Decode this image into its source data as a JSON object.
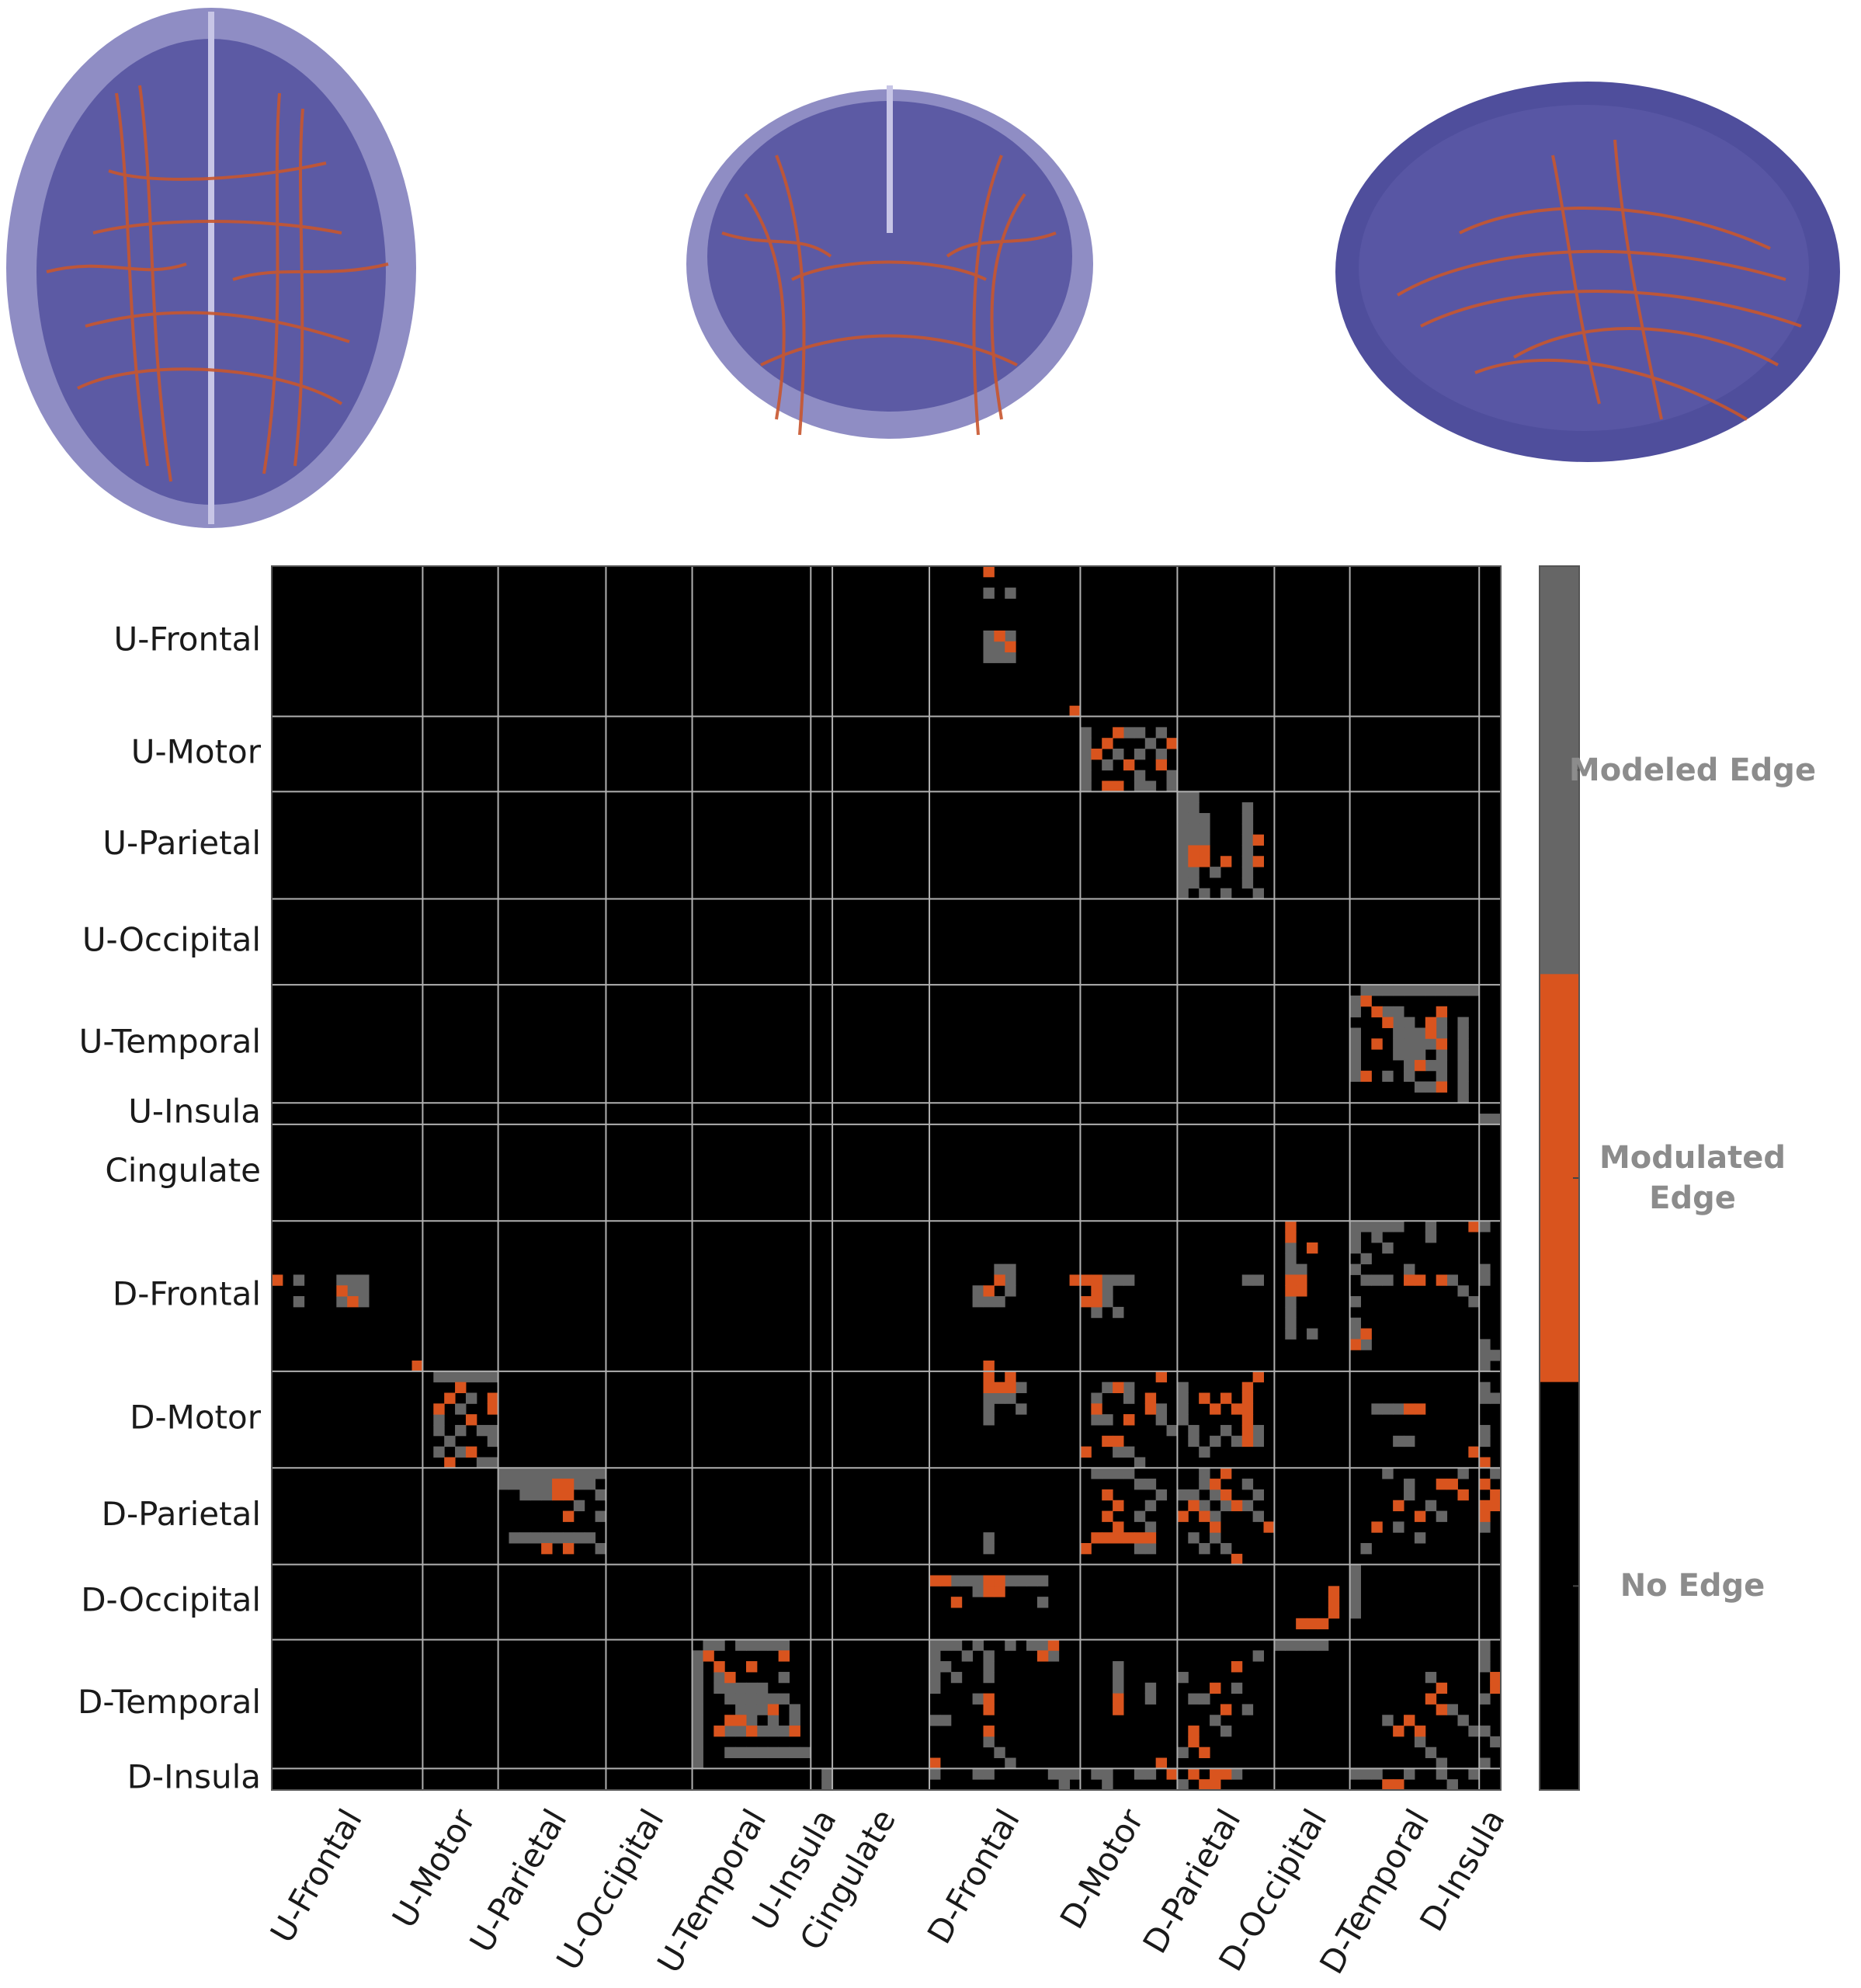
{
  "chart_data": {
    "type": "heatmap",
    "groups": [
      {
        "label": "U-Frontal",
        "size": 14
      },
      {
        "label": "U-Motor",
        "size": 7
      },
      {
        "label": "U-Parietal",
        "size": 10
      },
      {
        "label": "U-Occipital",
        "size": 8
      },
      {
        "label": "U-Temporal",
        "size": 11
      },
      {
        "label": "U-Insula",
        "size": 2
      },
      {
        "label": "Cingulate",
        "size": 9
      },
      {
        "label": "D-Frontal",
        "size": 14
      },
      {
        "label": "D-Motor",
        "size": 9
      },
      {
        "label": "D-Parietal",
        "size": 9
      },
      {
        "label": "D-Occipital",
        "size": 7
      },
      {
        "label": "D-Temporal",
        "size": 12
      },
      {
        "label": "D-Insula",
        "size": 2
      }
    ],
    "symmetric": true,
    "background": {
      "name": "No Edge",
      "color": "#000000"
    },
    "series": [
      {
        "name": "Modeled Edge",
        "color": "#666666",
        "cells": [
          [
            2,
            66
          ],
          [
            2,
            68
          ],
          [
            6,
            66
          ],
          [
            6,
            68
          ],
          [
            7,
            66
          ],
          [
            7,
            67
          ],
          [
            8,
            66
          ],
          [
            8,
            67
          ],
          [
            8,
            68
          ],
          [
            15,
            75
          ],
          [
            16,
            75
          ],
          [
            17,
            75
          ],
          [
            18,
            75
          ],
          [
            19,
            75
          ],
          [
            20,
            75
          ],
          [
            15,
            79
          ],
          [
            15,
            80
          ],
          [
            15,
            82
          ],
          [
            16,
            81
          ],
          [
            17,
            78
          ],
          [
            17,
            80
          ],
          [
            17,
            82
          ],
          [
            18,
            77
          ],
          [
            19,
            80
          ],
          [
            20,
            80
          ],
          [
            20,
            81
          ],
          [
            20,
            83
          ],
          [
            19,
            83
          ],
          [
            21,
            84
          ],
          [
            22,
            84
          ],
          [
            23,
            84
          ],
          [
            24,
            84
          ],
          [
            25,
            84
          ],
          [
            26,
            84
          ],
          [
            27,
            84
          ],
          [
            28,
            84
          ],
          [
            29,
            84
          ],
          [
            30,
            84
          ],
          [
            21,
            85
          ],
          [
            22,
            85
          ],
          [
            23,
            85
          ],
          [
            24,
            85
          ],
          [
            25,
            85
          ],
          [
            28,
            85
          ],
          [
            29,
            85
          ],
          [
            22,
            90
          ],
          [
            23,
            90
          ],
          [
            24,
            90
          ],
          [
            25,
            90
          ],
          [
            26,
            90
          ],
          [
            27,
            90
          ],
          [
            28,
            90
          ],
          [
            29,
            90
          ],
          [
            28,
            87
          ],
          [
            30,
            86
          ],
          [
            30,
            88
          ],
          [
            30,
            91
          ],
          [
            23,
            86
          ],
          [
            24,
            86
          ],
          [
            25,
            86
          ],
          [
            39,
            101
          ],
          [
            39,
            102
          ],
          [
            39,
            103
          ],
          [
            39,
            104
          ],
          [
            39,
            105
          ],
          [
            39,
            106
          ],
          [
            39,
            107
          ],
          [
            39,
            108
          ],
          [
            39,
            109
          ],
          [
            39,
            110
          ],
          [
            39,
            111
          ],
          [
            40,
            100
          ],
          [
            41,
            100
          ],
          [
            43,
            100
          ],
          [
            44,
            100
          ],
          [
            45,
            100
          ],
          [
            46,
            100
          ],
          [
            47,
            100
          ],
          [
            41,
            103
          ],
          [
            41,
            104
          ],
          [
            42,
            104
          ],
          [
            42,
            105
          ],
          [
            43,
            104
          ],
          [
            43,
            105
          ],
          [
            43,
            106
          ],
          [
            44,
            104
          ],
          [
            44,
            105
          ],
          [
            44,
            106
          ],
          [
            44,
            107
          ],
          [
            45,
            104
          ],
          [
            45,
            105
          ],
          [
            45,
            106
          ],
          [
            46,
            105
          ],
          [
            46,
            107
          ],
          [
            47,
            105
          ],
          [
            47,
            108
          ],
          [
            48,
            106
          ],
          [
            48,
            107
          ],
          [
            48,
            110
          ],
          [
            49,
            110
          ],
          [
            42,
            110
          ],
          [
            43,
            110
          ],
          [
            44,
            110
          ],
          [
            45,
            110
          ],
          [
            46,
            110
          ],
          [
            47,
            110
          ],
          [
            42,
            108
          ],
          [
            43,
            108
          ],
          [
            45,
            108
          ],
          [
            46,
            108
          ],
          [
            47,
            103
          ],
          [
            51,
            112
          ],
          [
            51,
            113
          ],
          [
            63,
            94
          ],
          [
            64,
            94
          ],
          [
            65,
            94
          ],
          [
            68,
            94
          ],
          [
            69,
            94
          ],
          [
            70,
            94
          ],
          [
            71,
            94
          ],
          [
            71,
            96
          ],
          [
            65,
            95
          ],
          [
            61,
            102
          ],
          [
            61,
            103
          ],
          [
            61,
            104
          ],
          [
            61,
            107
          ],
          [
            62,
            100
          ],
          [
            63,
            100
          ],
          [
            62,
            107
          ],
          [
            65,
            100
          ],
          [
            66,
            101
          ],
          [
            66,
            102
          ],
          [
            66,
            103
          ],
          [
            68,
            100
          ],
          [
            70,
            100
          ],
          [
            71,
            100
          ],
          [
            72,
            101
          ],
          [
            61,
            112
          ],
          [
            65,
            112
          ],
          [
            66,
            112
          ],
          [
            72,
            112
          ],
          [
            73,
            112
          ],
          [
            74,
            112
          ],
          [
            73,
            113
          ],
          [
            65,
            67
          ],
          [
            65,
            68
          ],
          [
            66,
            68
          ],
          [
            67,
            68
          ],
          [
            66,
            77
          ],
          [
            66,
            78
          ],
          [
            66,
            79
          ],
          [
            67,
            77
          ],
          [
            68,
            77
          ],
          [
            69,
            76
          ],
          [
            69,
            78
          ],
          [
            66,
            90
          ],
          [
            66,
            91
          ],
          [
            76,
            77
          ],
          [
            76,
            79
          ],
          [
            77,
            79
          ],
          [
            78,
            82
          ],
          [
            79,
            82
          ],
          [
            80,
            83
          ],
          [
            76,
            84
          ],
          [
            77,
            84
          ],
          [
            78,
            84
          ],
          [
            79,
            84
          ],
          [
            80,
            85
          ],
          [
            81,
            85
          ],
          [
            81,
            87
          ],
          [
            82,
            86
          ],
          [
            80,
            88
          ],
          [
            81,
            89
          ],
          [
            80,
            91
          ],
          [
            81,
            91
          ],
          [
            78,
            102
          ],
          [
            78,
            103
          ],
          [
            78,
            104
          ],
          [
            81,
            104
          ],
          [
            81,
            105
          ],
          [
            80,
            112
          ],
          [
            81,
            112
          ],
          [
            76,
            112
          ],
          [
            77,
            112
          ],
          [
            77,
            113
          ],
          [
            84,
            86
          ],
          [
            85,
            86
          ],
          [
            85,
            90
          ],
          [
            86,
            87
          ],
          [
            86,
            91
          ],
          [
            87,
            88
          ],
          [
            87,
            90
          ],
          [
            88,
            91
          ],
          [
            84,
            103
          ],
          [
            84,
            110
          ],
          [
            85,
            105
          ],
          [
            86,
            105
          ],
          [
            87,
            107
          ],
          [
            88,
            108
          ],
          [
            89,
            104
          ],
          [
            90,
            106
          ],
          [
            91,
            101
          ],
          [
            84,
            113
          ],
          [
            89,
            112
          ],
          [
            93,
            100
          ],
          [
            94,
            100
          ],
          [
            95,
            100
          ],
          [
            96,
            100
          ],
          [
            97,
            100
          ],
          [
            103,
            107
          ],
          [
            106,
            109
          ],
          [
            107,
            110
          ],
          [
            108,
            111
          ],
          [
            100,
            112
          ],
          [
            101,
            112
          ],
          [
            102,
            112
          ],
          [
            105,
            112
          ],
          [
            108,
            112
          ],
          [
            109,
            113
          ],
          [
            111,
            112
          ],
          [
            61,
            100
          ],
          [
            61,
            101
          ],
          [
            62,
            102
          ],
          [
            63,
            103
          ],
          [
            64,
            101
          ],
          [
            65,
            105
          ],
          [
            66,
            109
          ],
          [
            67,
            110
          ],
          [
            68,
            111
          ]
        ]
      },
      {
        "name": "Modulated Edge",
        "color": "#d9541e",
        "cells": [
          [
            0,
            66
          ],
          [
            6,
            67
          ],
          [
            7,
            68
          ],
          [
            13,
            74
          ],
          [
            15,
            78
          ],
          [
            16,
            77
          ],
          [
            17,
            76
          ],
          [
            18,
            79
          ],
          [
            18,
            82
          ],
          [
            20,
            77
          ],
          [
            20,
            78
          ],
          [
            16,
            83
          ],
          [
            26,
            85
          ],
          [
            27,
            85
          ],
          [
            26,
            86
          ],
          [
            27,
            86
          ],
          [
            27,
            88
          ],
          [
            25,
            91
          ],
          [
            27,
            91
          ],
          [
            40,
            101
          ],
          [
            41,
            102
          ],
          [
            42,
            107
          ],
          [
            43,
            107
          ],
          [
            42,
            103
          ],
          [
            44,
            102
          ],
          [
            44,
            108
          ],
          [
            46,
            106
          ],
          [
            47,
            101
          ],
          [
            48,
            108
          ],
          [
            41,
            108
          ],
          [
            61,
            94
          ],
          [
            62,
            94
          ],
          [
            66,
            94
          ],
          [
            66,
            95
          ],
          [
            67,
            94
          ],
          [
            67,
            95
          ],
          [
            63,
            96
          ],
          [
            61,
            111
          ],
          [
            66,
            105
          ],
          [
            66,
            106
          ],
          [
            66,
            108
          ],
          [
            71,
            101
          ],
          [
            72,
            100
          ],
          [
            66,
            67
          ],
          [
            66,
            74
          ],
          [
            66,
            75
          ],
          [
            66,
            76
          ],
          [
            67,
            76
          ],
          [
            68,
            75
          ],
          [
            68,
            76
          ],
          [
            75,
            82
          ],
          [
            76,
            78
          ],
          [
            77,
            81
          ],
          [
            78,
            81
          ],
          [
            79,
            79
          ],
          [
            77,
            86
          ],
          [
            78,
            87
          ],
          [
            77,
            88
          ],
          [
            78,
            89
          ],
          [
            76,
            90
          ],
          [
            77,
            90
          ],
          [
            78,
            90
          ],
          [
            79,
            90
          ],
          [
            80,
            90
          ],
          [
            81,
            90
          ],
          [
            75,
            91
          ],
          [
            78,
            105
          ],
          [
            78,
            106
          ],
          [
            82,
            111
          ],
          [
            83,
            112
          ],
          [
            84,
            88
          ],
          [
            85,
            87
          ],
          [
            86,
            88
          ],
          [
            87,
            89
          ],
          [
            89,
            92
          ],
          [
            85,
            108
          ],
          [
            85,
            109
          ],
          [
            86,
            110
          ],
          [
            87,
            104
          ],
          [
            88,
            106
          ],
          [
            89,
            102
          ],
          [
            85,
            112
          ],
          [
            86,
            113
          ],
          [
            87,
            112
          ],
          [
            88,
            112
          ],
          [
            87,
            113
          ],
          [
            95,
            98
          ],
          [
            96,
            98
          ],
          [
            97,
            98
          ],
          [
            104,
            108
          ],
          [
            105,
            107
          ],
          [
            106,
            108
          ],
          [
            103,
            113
          ],
          [
            104,
            113
          ]
        ]
      }
    ]
  }
}
